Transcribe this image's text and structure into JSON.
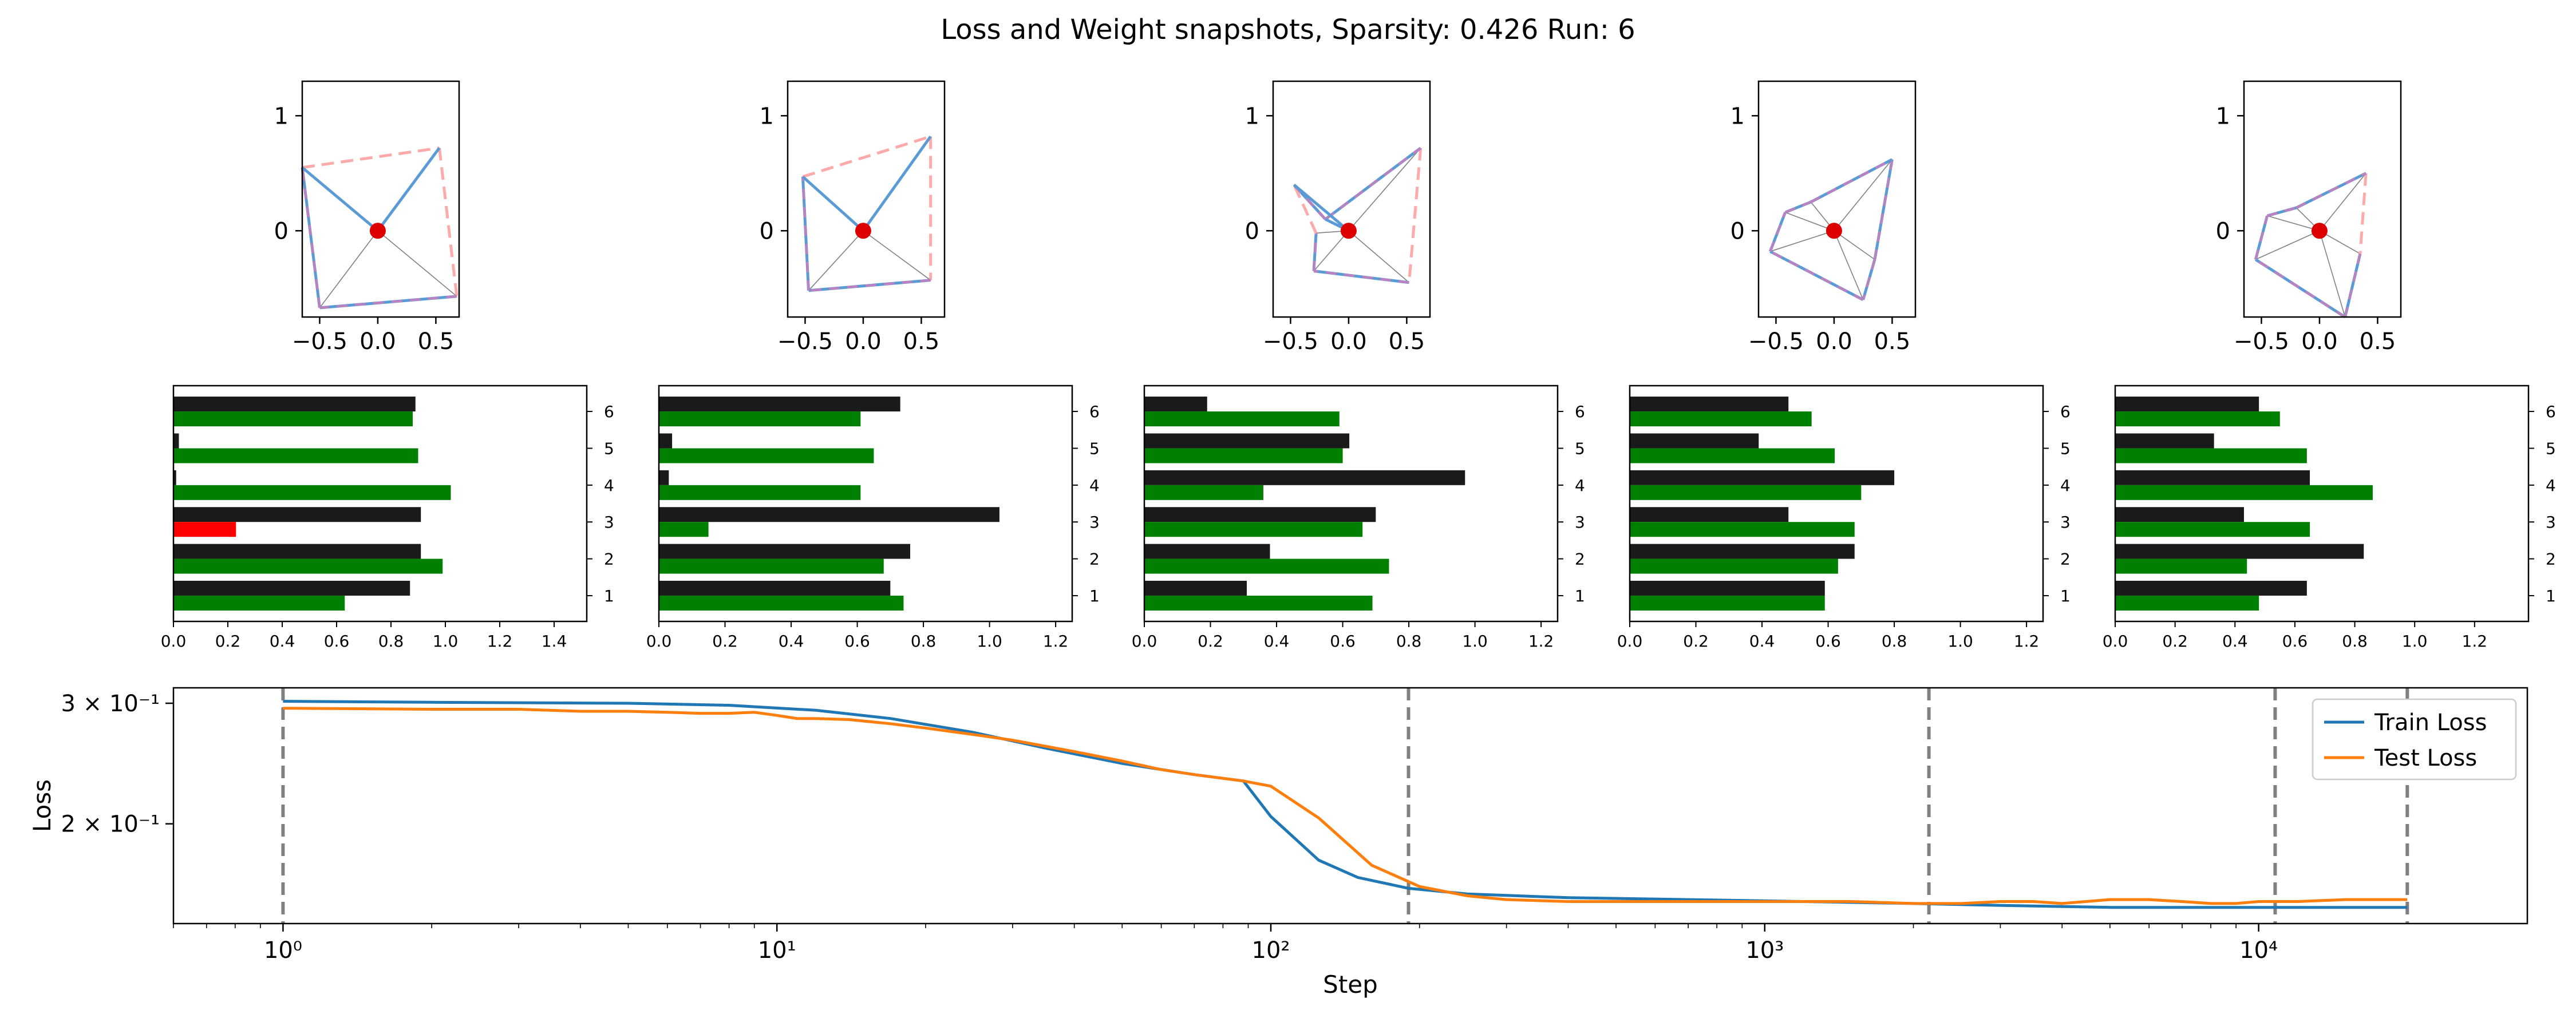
{
  "title": "Loss and Weight snapshots, Sparsity: 0.426  Run: 6",
  "colors": {
    "axis": "#000000",
    "black_bar": "#1a1a1a",
    "green_bar": "#008000",
    "red_bar": "#ff0000",
    "train": "#1f77b4",
    "test": "#ff7f0e",
    "vline": "#808080",
    "point": "#dd0000",
    "hull_pink": "#ffaaaa",
    "hull_blue": "#5b9bd5",
    "spoke": "#808080",
    "dashed_purple": "#c080c0"
  },
  "chart_data": [
    {
      "type": "scatter",
      "name": "weight-snapshots",
      "note": "2D weight vectors (one per feature) at 5 training snapshots, with convex-hull outline and origin marker",
      "xlim": [
        -0.65,
        0.7
      ],
      "ylim": [
        -0.75,
        1.3
      ],
      "xticks": [
        -0.5,
        0.0,
        0.5
      ],
      "xtick_labels": [
        "−0.5",
        "0.0",
        "0.5"
      ],
      "yticks": [
        0,
        1
      ],
      "ytick_labels": [
        "0",
        "1"
      ],
      "snapshots": [
        {
          "points": [
            [
              0.53,
              0.72
            ],
            [
              0.68,
              -0.57
            ],
            [
              -0.5,
              -0.67
            ],
            [
              -0.65,
              0.55
            ]
          ],
          "pink": [
            [
              0,
              1
            ],
            [
              3,
              0
            ]
          ],
          "blue_spokes": [
            0,
            3
          ]
        },
        {
          "points": [
            [
              0.58,
              0.82
            ],
            [
              0.58,
              -0.43
            ],
            [
              -0.47,
              -0.52
            ],
            [
              -0.52,
              0.47
            ]
          ],
          "pink": [
            [
              0,
              1
            ],
            [
              3,
              0
            ]
          ],
          "blue_spokes": [
            0,
            3
          ]
        },
        {
          "points": [
            [
              0.62,
              0.72
            ],
            [
              0.52,
              -0.45
            ],
            [
              -0.3,
              -0.35
            ],
            [
              -0.28,
              -0.02
            ],
            [
              -0.47,
              0.4
            ],
            [
              -0.2,
              0.1
            ]
          ],
          "pink": [
            [
              0,
              1
            ],
            [
              3,
              4
            ]
          ],
          "blue_spokes": [
            4,
            5
          ]
        },
        {
          "points": [
            [
              0.5,
              0.62
            ],
            [
              0.35,
              -0.25
            ],
            [
              0.25,
              -0.6
            ],
            [
              -0.55,
              -0.18
            ],
            [
              -0.42,
              0.16
            ],
            [
              -0.2,
              0.25
            ]
          ],
          "pink": [],
          "blue_spokes": []
        },
        {
          "points": [
            [
              0.4,
              0.5
            ],
            [
              0.35,
              -0.2
            ],
            [
              0.22,
              -0.75
            ],
            [
              -0.55,
              -0.25
            ],
            [
              -0.45,
              0.13
            ],
            [
              -0.2,
              0.2
            ]
          ],
          "pink": [
            [
              0,
              1
            ]
          ],
          "blue_spokes": []
        }
      ]
    },
    {
      "type": "bar",
      "name": "feature-norms",
      "orientation": "horizontal",
      "categories": [
        "1",
        "2",
        "3",
        "4",
        "5",
        "6"
      ],
      "panels": [
        {
          "xlim": [
            0,
            1.52
          ],
          "xticks": [
            "0.0",
            "0.2",
            "0.4",
            "0.6",
            "0.8",
            "1.0",
            "1.2",
            "1.4"
          ],
          "black": [
            0.87,
            0.91,
            0.91,
            0.01,
            0.02,
            0.89
          ],
          "lower": [
            0.63,
            0.99,
            0.23,
            1.02,
            0.9,
            0.88
          ],
          "lower_colors": [
            "green",
            "green",
            "red",
            "green",
            "green",
            "green"
          ]
        },
        {
          "xlim": [
            0,
            1.25
          ],
          "xticks": [
            "0.0",
            "0.2",
            "0.4",
            "0.6",
            "0.8",
            "1.0",
            "1.2"
          ],
          "black": [
            0.7,
            0.76,
            1.03,
            0.03,
            0.04,
            0.73
          ],
          "lower": [
            0.74,
            0.68,
            0.15,
            0.61,
            0.65,
            0.61
          ],
          "lower_colors": [
            "green",
            "green",
            "green",
            "green",
            "green",
            "green"
          ]
        },
        {
          "xlim": [
            0,
            1.25
          ],
          "xticks": [
            "0.0",
            "0.2",
            "0.4",
            "0.6",
            "0.8",
            "1.0",
            "1.2"
          ],
          "black": [
            0.31,
            0.38,
            0.7,
            0.97,
            0.62,
            0.19
          ],
          "lower": [
            0.69,
            0.74,
            0.66,
            0.36,
            0.6,
            0.59
          ],
          "lower_colors": [
            "green",
            "green",
            "green",
            "green",
            "green",
            "green"
          ]
        },
        {
          "xlim": [
            0,
            1.25
          ],
          "xticks": [
            "0.0",
            "0.2",
            "0.4",
            "0.6",
            "0.8",
            "1.0",
            "1.2"
          ],
          "black": [
            0.59,
            0.68,
            0.48,
            0.8,
            0.39,
            0.48
          ],
          "lower": [
            0.59,
            0.63,
            0.68,
            0.7,
            0.62,
            0.55
          ],
          "lower_colors": [
            "green",
            "green",
            "green",
            "green",
            "green",
            "green"
          ]
        },
        {
          "xlim": [
            0,
            1.38
          ],
          "xticks": [
            "0.0",
            "0.2",
            "0.4",
            "0.6",
            "0.8",
            "1.0",
            "1.2"
          ],
          "black": [
            0.64,
            0.83,
            0.43,
            0.65,
            0.33,
            0.48
          ],
          "lower": [
            0.48,
            0.44,
            0.65,
            0.86,
            0.64,
            0.55
          ],
          "lower_colors": [
            "green",
            "green",
            "green",
            "green",
            "green",
            "green"
          ]
        }
      ]
    },
    {
      "type": "line",
      "name": "loss-curve",
      "xscale": "log",
      "yscale": "log",
      "xlabel": "Step",
      "ylabel": "Loss",
      "xlim": [
        0.6,
        35000
      ],
      "ylim": [
        0.143,
        0.316
      ],
      "xticks": [
        1,
        10,
        100,
        1000,
        10000
      ],
      "xtick_labels": [
        "10⁰",
        "10¹",
        "10²",
        "10³",
        "10⁴"
      ],
      "yticks": [
        0.2,
        0.3
      ],
      "ytick_labels": [
        "2 × 10⁻¹",
        "3 × 10⁻¹"
      ],
      "snapshot_steps": [
        1,
        190,
        2150,
        10800,
        20000
      ],
      "legend_position": "top-right",
      "series": [
        {
          "name": "Train Loss",
          "x": [
            1,
            2,
            5,
            8,
            12,
            17,
            25,
            35,
            50,
            70,
            88,
            100,
            125,
            150,
            190,
            250,
            400,
            700,
            1200,
            2000,
            3000,
            5000,
            10000,
            20000
          ],
          "y": [
            0.302,
            0.301,
            0.3,
            0.298,
            0.293,
            0.285,
            0.272,
            0.258,
            0.245,
            0.236,
            0.231,
            0.205,
            0.177,
            0.167,
            0.161,
            0.158,
            0.156,
            0.155,
            0.154,
            0.153,
            0.152,
            0.151,
            0.151,
            0.151
          ]
        },
        {
          "name": "Test Loss",
          "x": [
            1,
            2,
            3,
            4,
            5,
            6,
            7,
            8,
            9,
            10,
            11,
            12,
            14,
            17,
            20,
            25,
            30,
            40,
            50,
            60,
            70,
            88,
            100,
            125,
            160,
            200,
            250,
            300,
            400,
            500,
            700,
            800,
            1200,
            1500,
            2000,
            2500,
            3000,
            3500,
            4000,
            5000,
            6000,
            7000,
            8000,
            9000,
            10000,
            12000,
            15000,
            20000
          ],
          "y": [
            0.295,
            0.294,
            0.294,
            0.292,
            0.292,
            0.291,
            0.29,
            0.29,
            0.291,
            0.288,
            0.285,
            0.285,
            0.284,
            0.28,
            0.276,
            0.27,
            0.265,
            0.255,
            0.247,
            0.24,
            0.236,
            0.231,
            0.227,
            0.204,
            0.174,
            0.162,
            0.157,
            0.155,
            0.154,
            0.154,
            0.154,
            0.154,
            0.154,
            0.154,
            0.153,
            0.153,
            0.154,
            0.154,
            0.153,
            0.155,
            0.155,
            0.154,
            0.153,
            0.153,
            0.154,
            0.154,
            0.155,
            0.155
          ]
        }
      ]
    }
  ]
}
